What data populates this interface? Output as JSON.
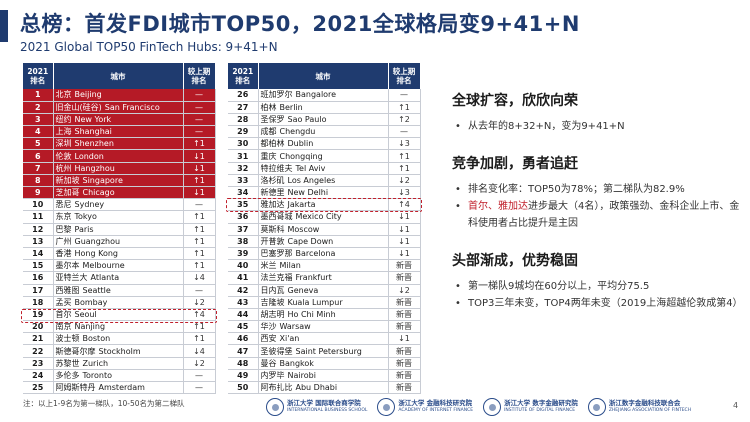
{
  "header": {
    "title": "总榜：首发FDI城市TOP50，2021全球格局变9+41+N",
    "subtitle": "2021 Global TOP50 FinTech Hubs: 9+41+N"
  },
  "table": {
    "headers": {
      "rank": "2021\n排名",
      "city": "城市",
      "change": "较上期\n排名"
    },
    "left_rows": [
      {
        "rank": "1",
        "cn": "北京",
        "en": "Beijing",
        "change": "—"
      },
      {
        "rank": "2",
        "cn": "旧金山(硅谷)",
        "en": "San Francisco",
        "change": "—"
      },
      {
        "rank": "3",
        "cn": "纽约",
        "en": "New York",
        "change": "—"
      },
      {
        "rank": "4",
        "cn": "上海",
        "en": "Shanghai",
        "change": "—"
      },
      {
        "rank": "5",
        "cn": "深圳",
        "en": "Shenzhen",
        "change": "↑1"
      },
      {
        "rank": "6",
        "cn": "伦敦",
        "en": "London",
        "change": "↓1"
      },
      {
        "rank": "7",
        "cn": "杭州",
        "en": "Hangzhou",
        "change": "↓1"
      },
      {
        "rank": "8",
        "cn": "新加坡",
        "en": "Singapore",
        "change": "↑1"
      },
      {
        "rank": "9",
        "cn": "芝加哥",
        "en": "Chicago",
        "change": "↓1"
      },
      {
        "rank": "10",
        "cn": "悉尼",
        "en": "Sydney",
        "change": "—"
      },
      {
        "rank": "11",
        "cn": "东京",
        "en": "Tokyo",
        "change": "↑1"
      },
      {
        "rank": "12",
        "cn": "巴黎",
        "en": "Paris",
        "change": "↑1"
      },
      {
        "rank": "13",
        "cn": "广州",
        "en": "Guangzhou",
        "change": "↑1"
      },
      {
        "rank": "14",
        "cn": "香港",
        "en": "Hong Kong",
        "change": "↑1"
      },
      {
        "rank": "15",
        "cn": "墨尔本",
        "en": "Melbourne",
        "change": "↑1"
      },
      {
        "rank": "16",
        "cn": "亚特兰大",
        "en": "Atlanta",
        "change": "↓4"
      },
      {
        "rank": "17",
        "cn": "西雅图",
        "en": "Seattle",
        "change": "—"
      },
      {
        "rank": "18",
        "cn": "孟买",
        "en": "Bombay",
        "change": "↓2"
      },
      {
        "rank": "19",
        "cn": "首尔",
        "en": "Seoul",
        "change": "↑4"
      },
      {
        "rank": "20",
        "cn": "南京",
        "en": "Nanjing",
        "change": "↑1"
      },
      {
        "rank": "21",
        "cn": "波士顿",
        "en": "Boston",
        "change": "↑1"
      },
      {
        "rank": "22",
        "cn": "斯德哥尔摩",
        "en": "Stockholm",
        "change": "↓4"
      },
      {
        "rank": "23",
        "cn": "苏黎世",
        "en": "Zurich",
        "change": "↓2"
      },
      {
        "rank": "24",
        "cn": "多伦多",
        "en": "Toronto",
        "change": "—"
      },
      {
        "rank": "25",
        "cn": "阿姆斯特丹",
        "en": "Amsterdam",
        "change": "—"
      }
    ],
    "right_rows": [
      {
        "rank": "26",
        "cn": "班加罗尔",
        "en": "Bangalore",
        "change": "—"
      },
      {
        "rank": "27",
        "cn": "柏林",
        "en": "Berlin",
        "change": "↑1"
      },
      {
        "rank": "28",
        "cn": "圣保罗",
        "en": "Sao Paulo",
        "change": "↑2"
      },
      {
        "rank": "29",
        "cn": "成都",
        "en": "Chengdu",
        "change": "—"
      },
      {
        "rank": "30",
        "cn": "都柏林",
        "en": "Dublin",
        "change": "↓3"
      },
      {
        "rank": "31",
        "cn": "重庆",
        "en": "Chongqing",
        "change": "↑1"
      },
      {
        "rank": "32",
        "cn": "特拉维夫",
        "en": "Tel Aviv",
        "change": "↑1"
      },
      {
        "rank": "33",
        "cn": "洛杉矶",
        "en": "Los Angeles",
        "change": "↓2"
      },
      {
        "rank": "34",
        "cn": "新德里",
        "en": "New Delhi",
        "change": "↓3"
      },
      {
        "rank": "35",
        "cn": "雅加达",
        "en": "Jakarta",
        "change": "↑4"
      },
      {
        "rank": "36",
        "cn": "墨西哥城",
        "en": "Mexico City",
        "change": "↓1"
      },
      {
        "rank": "37",
        "cn": "莫斯科",
        "en": "Moscow",
        "change": "↓1"
      },
      {
        "rank": "38",
        "cn": "开普敦",
        "en": "Cape Down",
        "change": "↓1"
      },
      {
        "rank": "39",
        "cn": "巴塞罗那",
        "en": "Barcelona",
        "change": "↓1"
      },
      {
        "rank": "40",
        "cn": "米兰",
        "en": "Milan",
        "change": "新晋"
      },
      {
        "rank": "41",
        "cn": "法兰克福",
        "en": "Frankfurt",
        "change": "新晋"
      },
      {
        "rank": "42",
        "cn": "日内瓦",
        "en": "Geneva",
        "change": "↓2"
      },
      {
        "rank": "43",
        "cn": "吉隆坡",
        "en": "Kuala Lumpur",
        "change": "新晋"
      },
      {
        "rank": "44",
        "cn": "胡志明",
        "en": "Ho Chi Minh",
        "change": "新晋"
      },
      {
        "rank": "45",
        "cn": "华沙",
        "en": "Warsaw",
        "change": "新晋"
      },
      {
        "rank": "46",
        "cn": "西安",
        "en": "Xi'an",
        "change": "↓1"
      },
      {
        "rank": "47",
        "cn": "圣彼得堡",
        "en": "Saint Petersburg",
        "change": "新晋"
      },
      {
        "rank": "48",
        "cn": "曼谷",
        "en": "Bangkok",
        "change": "新晋"
      },
      {
        "rank": "49",
        "cn": "内罗毕",
        "en": "Nairobi",
        "change": "新晋"
      },
      {
        "rank": "50",
        "cn": "阿布扎比",
        "en": "Abu Dhabi",
        "change": "新晋"
      }
    ]
  },
  "panel": {
    "s1_title": "全球扩容，欣欣向荣",
    "s1_b1": "从去年的8+32+N，变为9+41+N",
    "s2_title": "竞争加剧，勇者追赶",
    "s2_b1": "排名变化率：TOP50为78%；第二梯队为82.9%",
    "s2_b2_red": "首尔、雅加达",
    "s2_b2_rest": "进步最大（4名），政策强劲、金科企业上市、金科使用者占比提升是主因",
    "s3_title": "头部渐成，优势稳固",
    "s3_b1": "第一梯队9城均在60分以上，平均分75.5",
    "s3_b2": "TOP3三年未变，TOP4两年未变（2019上海超越伦敦成第4）"
  },
  "footer": {
    "note": "注：以上1-9名为第一梯队，10-50名为第二梯队",
    "page": "4",
    "logos": [
      {
        "a": "浙江大学 国际联合商学院",
        "b": "INTERNATIONAL BUSINESS SCHOOL"
      },
      {
        "a": "浙江大学 金融科技研究院",
        "b": "ACADEMY OF INTERNET FINANCE"
      },
      {
        "a": "浙江大学 数字金融研究院",
        "b": "INSTITUTE OF DIGITAL FINANCE"
      },
      {
        "a": "浙江数字金融科技联合会",
        "b": "ZHEJIANG ASSOCIATION OF FINTECH"
      }
    ]
  },
  "colors": {
    "navy": "#1f3b6f",
    "red": "#b51a26",
    "dash": "#c0202c"
  }
}
